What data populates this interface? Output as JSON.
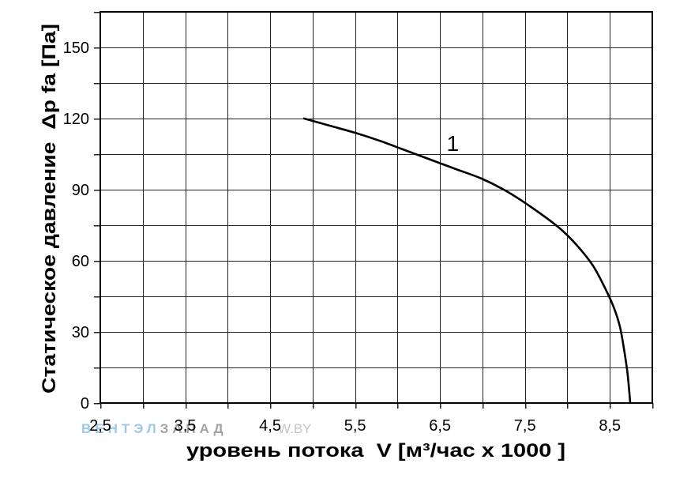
{
  "chart_data": {
    "type": "line",
    "xlabel": "уровень потока  V [м³/час x 1000 ]",
    "ylabel": "Статическое давление  Δp fa [Па]",
    "xlim": [
      2.5,
      9.0
    ],
    "ylim": [
      0,
      165
    ],
    "xticks": [
      2.5,
      3.5,
      4.5,
      5.5,
      6.5,
      7.5,
      8.5
    ],
    "xtick_labels": [
      "2,5",
      "3,5",
      "4,5",
      "5,5",
      "6,5",
      "7,5",
      "8,5"
    ],
    "yticks": [
      0,
      30,
      60,
      90,
      120,
      150
    ],
    "ytick_labels": [
      "0",
      "30",
      "60",
      "90",
      "120",
      "150"
    ],
    "grid": true,
    "x_grid_step": 0.5,
    "y_grid_step": 15,
    "legend": "none",
    "series": [
      {
        "name": "1",
        "color": "#000000",
        "x": [
          4.9,
          5.2,
          5.5,
          5.8,
          6.1,
          6.4,
          6.7,
          7.0,
          7.3,
          7.6,
          7.9,
          8.1,
          8.3,
          8.45,
          8.55,
          8.62,
          8.67,
          8.71,
          8.74
        ],
        "y": [
          120,
          117,
          114,
          110.5,
          106.5,
          102.5,
          98.5,
          94.5,
          89,
          82,
          74,
          67,
          58,
          48,
          40,
          32,
          22,
          12,
          0
        ]
      }
    ]
  },
  "watermark": {
    "part1": "ВЕНТЭЛ",
    "part2": "ЗАПАД",
    "part3": "W.BY"
  },
  "colors": {
    "grid": "#222222",
    "frame": "#000000",
    "watermark_blue": "#9cc9e8",
    "watermark_gray": "#a3a3a3",
    "watermark_light": "#c6c6c6"
  }
}
